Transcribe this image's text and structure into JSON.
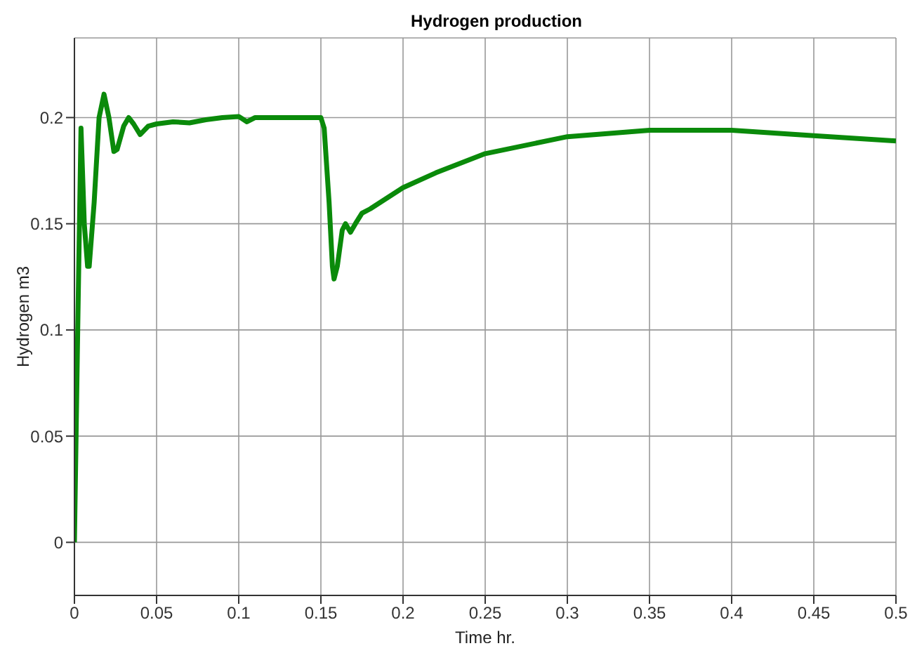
{
  "chart_data": {
    "type": "line",
    "title": "Hydrogen production",
    "xlabel": "Time hr.",
    "ylabel": "Hydrogen m3",
    "xlim": [
      0,
      0.5
    ],
    "xticks": [
      0,
      0.05,
      0.1,
      0.15,
      0.2,
      0.25,
      0.3,
      0.35,
      0.4,
      0.45,
      0.5
    ],
    "ylim": [
      -0.025,
      0.2375
    ],
    "yticks": [
      0,
      0.05,
      0.1,
      0.15,
      0.2
    ],
    "grid": true,
    "legend": false,
    "marker": "none",
    "line_style": "solid",
    "series": [
      {
        "color": "#0a8a0a",
        "x": [
          0,
          0.002,
          0.004,
          0.006,
          0.008,
          0.009,
          0.012,
          0.015,
          0.018,
          0.021,
          0.024,
          0.026,
          0.03,
          0.033,
          0.036,
          0.04,
          0.045,
          0.05,
          0.06,
          0.07,
          0.08,
          0.09,
          0.1,
          0.105,
          0.11,
          0.12,
          0.13,
          0.14,
          0.15,
          0.152,
          0.155,
          0.157,
          0.158,
          0.16,
          0.163,
          0.165,
          0.168,
          0.171,
          0.175,
          0.18,
          0.2,
          0.22,
          0.25,
          0.3,
          0.35,
          0.4,
          0.45,
          0.5
        ],
        "values": [
          0,
          0.1,
          0.195,
          0.15,
          0.13,
          0.13,
          0.16,
          0.2,
          0.211,
          0.2,
          0.184,
          0.185,
          0.196,
          0.2,
          0.197,
          0.192,
          0.196,
          0.197,
          0.198,
          0.1975,
          0.199,
          0.2,
          0.2005,
          0.198,
          0.2,
          0.2,
          0.2,
          0.2,
          0.2,
          0.195,
          0.16,
          0.13,
          0.124,
          0.13,
          0.147,
          0.15,
          0.146,
          0.15,
          0.155,
          0.157,
          0.167,
          0.174,
          0.183,
          0.191,
          0.194,
          0.194,
          0.1915,
          0.189
        ]
      }
    ]
  }
}
